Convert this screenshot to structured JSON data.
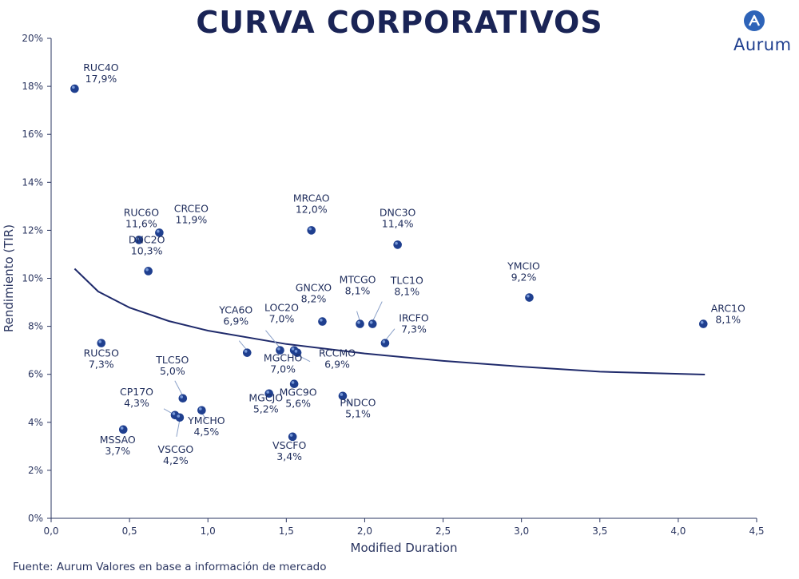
{
  "title": "CURVA CORPORATIVOS",
  "logo": {
    "text": "Aurum",
    "icon": "aurum-logo-icon"
  },
  "source": "Fuente: Aurum Valores en base a información de mercado",
  "colors": {
    "points": "#1f3f8f",
    "curve": "#1f2a6b",
    "axis": "#2a3560",
    "leader": "#8aa0c8"
  },
  "chart_data": {
    "type": "scatter",
    "title": "CURVA CORPORATIVOS",
    "xlabel": "Modified Duration",
    "ylabel": "Rendimiento (TIR)",
    "xlim": [
      0,
      4.5
    ],
    "ylim": [
      0,
      20
    ],
    "grid": false,
    "x_ticks": [
      "0,0",
      "0,5",
      "1,0",
      "1,5",
      "2,0",
      "2,5",
      "3,0",
      "3,5",
      "4,0",
      "4,5"
    ],
    "x_tick_values": [
      0,
      0.5,
      1.0,
      1.5,
      2.0,
      2.5,
      3.0,
      3.5,
      4.0,
      4.5
    ],
    "y_ticks": [
      "0%",
      "2%",
      "4%",
      "6%",
      "8%",
      "10%",
      "12%",
      "14%",
      "16%",
      "18%",
      "20%"
    ],
    "y_tick_values": [
      0,
      2,
      4,
      6,
      8,
      10,
      12,
      14,
      16,
      18,
      20
    ],
    "points": [
      {
        "name": "RUC4O",
        "label": "17,9%",
        "x": 0.15,
        "y": 17.9
      },
      {
        "name": "RUC6O",
        "label": "11,6%",
        "x": 0.56,
        "y": 11.6
      },
      {
        "name": "CRCEO",
        "label": "11,9%",
        "x": 0.69,
        "y": 11.9
      },
      {
        "name": "DNC2O",
        "label": "10,3%",
        "x": 0.62,
        "y": 10.3
      },
      {
        "name": "RUC5O",
        "label": "7,3%",
        "x": 0.32,
        "y": 7.3
      },
      {
        "name": "MRCAO",
        "label": "12,0%",
        "x": 1.66,
        "y": 12.0
      },
      {
        "name": "DNC3O",
        "label": "11,4%",
        "x": 2.21,
        "y": 11.4
      },
      {
        "name": "YMCIO",
        "label": "9,2%",
        "x": 3.05,
        "y": 9.2
      },
      {
        "name": "ARC1O",
        "label": "8,1%",
        "x": 4.16,
        "y": 8.1
      },
      {
        "name": "GNCXO",
        "label": "8,2%",
        "x": 1.73,
        "y": 8.2
      },
      {
        "name": "MTCGO",
        "label": "8,1%",
        "x": 1.97,
        "y": 8.1
      },
      {
        "name": "TLC1O",
        "label": "8,1%",
        "x": 2.05,
        "y": 8.1
      },
      {
        "name": "IRCFO",
        "label": "7,3%",
        "x": 2.13,
        "y": 7.3
      },
      {
        "name": "LOC2O",
        "label": "7,0%",
        "x": 1.46,
        "y": 7.0
      },
      {
        "name": "YCA6O",
        "label": "6,9%",
        "x": 1.25,
        "y": 6.9
      },
      {
        "name": "MGCHO",
        "label": "7,0%",
        "x": 1.55,
        "y": 7.0
      },
      {
        "name": "RCCMO",
        "label": "6,9%",
        "x": 1.57,
        "y": 6.9
      },
      {
        "name": "TLC5O",
        "label": "5,0%",
        "x": 0.84,
        "y": 5.0
      },
      {
        "name": "CP17O",
        "label": "4,3%",
        "x": 0.79,
        "y": 4.3
      },
      {
        "name": "VSCGO",
        "label": "4,2%",
        "x": 0.82,
        "y": 4.2
      },
      {
        "name": "YMCHO",
        "label": "4,5%",
        "x": 0.96,
        "y": 4.5
      },
      {
        "name": "MSSAO",
        "label": "3,7%",
        "x": 0.46,
        "y": 3.7
      },
      {
        "name": "MGCJO",
        "label": "5,2%",
        "x": 1.39,
        "y": 5.2
      },
      {
        "name": "MGC9O",
        "label": "5,6%",
        "x": 1.55,
        "y": 5.6
      },
      {
        "name": "PNDCO",
        "label": "5,1%",
        "x": 1.86,
        "y": 5.1
      },
      {
        "name": "VSCFO",
        "label": "3,4%",
        "x": 1.54,
        "y": 3.4
      }
    ],
    "trendline": {
      "type": "logarithmic",
      "x": [
        0.15,
        0.3,
        0.5,
        0.75,
        1.0,
        1.5,
        2.0,
        2.5,
        3.0,
        3.5,
        4.17
      ],
      "y": [
        10.4,
        9.45,
        8.78,
        8.22,
        7.82,
        7.26,
        6.87,
        6.56,
        6.32,
        6.11,
        5.99
      ]
    }
  }
}
